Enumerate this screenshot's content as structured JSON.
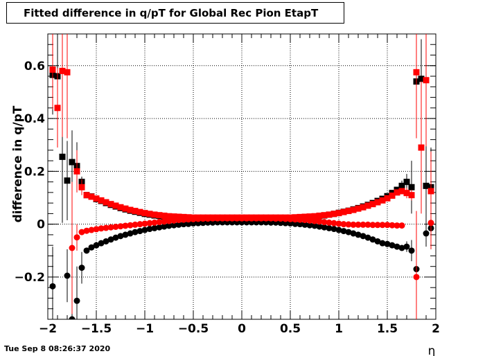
{
  "title": "Fitted difference in q/pT for Global Rec Pion EtapT",
  "datestamp": "Tue Sep  8 08:26:37 2020",
  "chart_data": {
    "type": "scatter",
    "title": "Fitted difference in q/pT for Global Rec Pion EtapT",
    "xlabel": "η",
    "ylabel": "difference in q/pT",
    "xlim": [
      -2,
      2
    ],
    "ylim": [
      -0.36,
      0.72
    ],
    "x_ticks": [
      -2,
      -1.5,
      -1,
      -0.5,
      0,
      0.5,
      1,
      1.5,
      2
    ],
    "x_tick_labels": [
      "−2",
      "−1.5",
      "−1",
      "−0.5",
      "0",
      "0.5",
      "1",
      "1.5",
      "2"
    ],
    "y_ticks": [
      -0.2,
      0,
      0.2,
      0.4,
      0.6
    ],
    "y_tick_labels": [
      "−0.2",
      "0",
      "0.2",
      "0.4",
      "0.6"
    ],
    "grid": true,
    "legend": "none",
    "series": [
      {
        "marker": "square",
        "color": "#000000",
        "x": [
          -1.95,
          -1.9,
          -1.85,
          -1.8,
          -1.75,
          -1.7,
          -1.65,
          -1.6,
          -1.55,
          -1.5,
          -1.45,
          -1.4,
          -1.35,
          -1.3,
          -1.25,
          -1.2,
          -1.15,
          -1.1,
          -1.05,
          -1.0,
          -0.95,
          -0.9,
          -0.85,
          -0.8,
          -0.75,
          -0.7,
          -0.65,
          -0.6,
          -0.55,
          -0.5,
          -0.45,
          -0.4,
          -0.35,
          -0.3,
          -0.25,
          -0.2,
          -0.15,
          -0.1,
          -0.05,
          0.0,
          0.05,
          0.1,
          0.15,
          0.2,
          0.25,
          0.3,
          0.35,
          0.4,
          0.45,
          0.5,
          0.55,
          0.6,
          0.65,
          0.7,
          0.75,
          0.8,
          0.85,
          0.9,
          0.95,
          1.0,
          1.05,
          1.1,
          1.15,
          1.2,
          1.25,
          1.3,
          1.35,
          1.4,
          1.45,
          1.5,
          1.55,
          1.6,
          1.65,
          1.7,
          1.75,
          1.8,
          1.85,
          1.9,
          1.95
        ],
        "y": [
          0.565,
          0.56,
          0.255,
          0.165,
          0.235,
          0.22,
          0.16,
          0.11,
          0.105,
          0.095,
          0.088,
          0.08,
          0.073,
          0.067,
          0.061,
          0.056,
          0.051,
          0.047,
          0.043,
          0.039,
          0.036,
          0.033,
          0.031,
          0.029,
          0.027,
          0.025,
          0.024,
          0.023,
          0.022,
          0.021,
          0.021,
          0.02,
          0.02,
          0.02,
          0.02,
          0.02,
          0.02,
          0.02,
          0.02,
          0.02,
          0.02,
          0.02,
          0.02,
          0.02,
          0.02,
          0.02,
          0.02,
          0.021,
          0.021,
          0.022,
          0.023,
          0.024,
          0.025,
          0.027,
          0.029,
          0.031,
          0.033,
          0.036,
          0.039,
          0.043,
          0.047,
          0.051,
          0.056,
          0.061,
          0.067,
          0.073,
          0.08,
          0.088,
          0.096,
          0.106,
          0.118,
          0.13,
          0.145,
          0.16,
          0.14,
          0.54,
          0.55,
          0.145,
          0.14
        ],
        "yerr": [
          0.15,
          0.15,
          0.25,
          0.15,
          0.12,
          0.09,
          0.02,
          0.006,
          0.005,
          0.005,
          0.004,
          0.004,
          0.003,
          0.003,
          0.003,
          0.003,
          0.003,
          0.003,
          0.003,
          0.003,
          0.003,
          0.003,
          0.003,
          0.003,
          0.003,
          0.003,
          0.003,
          0.003,
          0.003,
          0.003,
          0.003,
          0.003,
          0.003,
          0.003,
          0.003,
          0.003,
          0.003,
          0.003,
          0.003,
          0.003,
          0.003,
          0.003,
          0.003,
          0.003,
          0.003,
          0.003,
          0.003,
          0.003,
          0.003,
          0.003,
          0.003,
          0.003,
          0.003,
          0.003,
          0.003,
          0.003,
          0.003,
          0.003,
          0.003,
          0.003,
          0.003,
          0.003,
          0.003,
          0.003,
          0.003,
          0.003,
          0.003,
          0.004,
          0.004,
          0.005,
          0.005,
          0.01,
          0.02,
          0.03,
          0.1,
          0.15,
          0.15,
          0.15,
          0.15
        ]
      },
      {
        "marker": "circle",
        "color": "#000000",
        "x": [
          -1.95,
          -1.8,
          -1.75,
          -1.7,
          -1.65,
          -1.6,
          -1.55,
          -1.5,
          -1.45,
          -1.4,
          -1.35,
          -1.3,
          -1.25,
          -1.2,
          -1.15,
          -1.1,
          -1.05,
          -1.0,
          -0.95,
          -0.9,
          -0.85,
          -0.8,
          -0.75,
          -0.7,
          -0.65,
          -0.6,
          -0.55,
          -0.5,
          -0.45,
          -0.4,
          -0.35,
          -0.3,
          -0.25,
          -0.2,
          -0.15,
          -0.1,
          -0.05,
          0.0,
          0.05,
          0.1,
          0.15,
          0.2,
          0.25,
          0.3,
          0.35,
          0.4,
          0.45,
          0.5,
          0.55,
          0.6,
          0.65,
          0.7,
          0.75,
          0.8,
          0.85,
          0.9,
          0.95,
          1.0,
          1.05,
          1.1,
          1.15,
          1.2,
          1.25,
          1.3,
          1.35,
          1.4,
          1.45,
          1.5,
          1.55,
          1.6,
          1.65,
          1.7,
          1.75,
          1.8,
          1.9,
          1.95
        ],
        "y": [
          -0.235,
          -0.195,
          -0.36,
          -0.29,
          -0.165,
          -0.1,
          -0.088,
          -0.08,
          -0.072,
          -0.065,
          -0.058,
          -0.051,
          -0.045,
          -0.04,
          -0.035,
          -0.03,
          -0.026,
          -0.022,
          -0.018,
          -0.015,
          -0.012,
          -0.009,
          -0.006,
          -0.004,
          -0.002,
          0.0,
          0.001,
          0.003,
          0.004,
          0.005,
          0.006,
          0.006,
          0.007,
          0.007,
          0.007,
          0.007,
          0.007,
          0.007,
          0.007,
          0.007,
          0.007,
          0.007,
          0.007,
          0.006,
          0.006,
          0.005,
          0.004,
          0.003,
          0.001,
          0.0,
          -0.002,
          -0.004,
          -0.006,
          -0.009,
          -0.012,
          -0.015,
          -0.018,
          -0.022,
          -0.026,
          -0.03,
          -0.035,
          -0.04,
          -0.045,
          -0.051,
          -0.058,
          -0.065,
          -0.072,
          -0.075,
          -0.08,
          -0.085,
          -0.09,
          -0.085,
          -0.1,
          -0.17,
          -0.035,
          -0.015
        ],
        "yerr": [
          0.15,
          0.1,
          0.1,
          0.13,
          0.06,
          0.01,
          0.005,
          0.005,
          0.004,
          0.004,
          0.003,
          0.003,
          0.003,
          0.003,
          0.003,
          0.003,
          0.003,
          0.003,
          0.003,
          0.003,
          0.003,
          0.003,
          0.003,
          0.003,
          0.003,
          0.003,
          0.003,
          0.003,
          0.003,
          0.003,
          0.003,
          0.003,
          0.003,
          0.003,
          0.003,
          0.003,
          0.003,
          0.003,
          0.003,
          0.003,
          0.003,
          0.003,
          0.003,
          0.003,
          0.003,
          0.003,
          0.003,
          0.003,
          0.003,
          0.003,
          0.003,
          0.003,
          0.003,
          0.003,
          0.003,
          0.003,
          0.003,
          0.003,
          0.003,
          0.003,
          0.003,
          0.003,
          0.003,
          0.003,
          0.003,
          0.003,
          0.004,
          0.004,
          0.005,
          0.005,
          0.01,
          0.02,
          0.04,
          0.11,
          0.05,
          0.08
        ]
      },
      {
        "marker": "square",
        "color": "#ff0000",
        "x": [
          -1.95,
          -1.9,
          -1.85,
          -1.8,
          -1.7,
          -1.65,
          -1.6,
          -1.55,
          -1.5,
          -1.45,
          -1.4,
          -1.35,
          -1.3,
          -1.25,
          -1.2,
          -1.15,
          -1.1,
          -1.05,
          -1.0,
          -0.95,
          -0.9,
          -0.85,
          -0.8,
          -0.75,
          -0.7,
          -0.65,
          -0.6,
          -0.55,
          -0.5,
          -0.45,
          -0.4,
          -0.35,
          -0.3,
          -0.25,
          -0.2,
          -0.15,
          -0.1,
          -0.05,
          0.0,
          0.05,
          0.1,
          0.15,
          0.2,
          0.25,
          0.3,
          0.35,
          0.4,
          0.45,
          0.5,
          0.55,
          0.6,
          0.65,
          0.7,
          0.75,
          0.8,
          0.85,
          0.9,
          0.95,
          1.0,
          1.05,
          1.1,
          1.15,
          1.2,
          1.25,
          1.3,
          1.35,
          1.4,
          1.45,
          1.5,
          1.55,
          1.6,
          1.65,
          1.7,
          1.75,
          1.8,
          1.85,
          1.9,
          1.95
        ],
        "y": [
          0.585,
          0.44,
          0.58,
          0.575,
          0.2,
          0.14,
          0.11,
          0.104,
          0.097,
          0.09,
          0.083,
          0.076,
          0.07,
          0.064,
          0.059,
          0.054,
          0.05,
          0.046,
          0.042,
          0.039,
          0.036,
          0.034,
          0.032,
          0.03,
          0.029,
          0.028,
          0.027,
          0.026,
          0.025,
          0.025,
          0.025,
          0.025,
          0.025,
          0.025,
          0.025,
          0.025,
          0.025,
          0.025,
          0.025,
          0.025,
          0.025,
          0.025,
          0.025,
          0.025,
          0.025,
          0.025,
          0.025,
          0.025,
          0.025,
          0.026,
          0.027,
          0.028,
          0.029,
          0.03,
          0.032,
          0.034,
          0.036,
          0.039,
          0.042,
          0.046,
          0.05,
          0.054,
          0.059,
          0.064,
          0.07,
          0.076,
          0.083,
          0.09,
          0.098,
          0.108,
          0.12,
          0.125,
          0.118,
          0.11,
          0.575,
          0.29,
          0.545,
          0.125
        ],
        "yerr": [
          0.15,
          0.15,
          0.25,
          0.25,
          0.08,
          0.03,
          0.008,
          0.005,
          0.005,
          0.004,
          0.004,
          0.003,
          0.003,
          0.003,
          0.003,
          0.003,
          0.003,
          0.003,
          0.003,
          0.003,
          0.003,
          0.003,
          0.003,
          0.003,
          0.003,
          0.003,
          0.003,
          0.003,
          0.003,
          0.003,
          0.003,
          0.003,
          0.003,
          0.003,
          0.003,
          0.003,
          0.003,
          0.003,
          0.003,
          0.003,
          0.003,
          0.003,
          0.003,
          0.003,
          0.003,
          0.003,
          0.003,
          0.003,
          0.003,
          0.003,
          0.003,
          0.003,
          0.003,
          0.003,
          0.003,
          0.003,
          0.003,
          0.003,
          0.003,
          0.003,
          0.003,
          0.003,
          0.003,
          0.003,
          0.003,
          0.003,
          0.004,
          0.004,
          0.005,
          0.005,
          0.008,
          0.01,
          0.02,
          0.02,
          0.25,
          0.25,
          0.25,
          0.15
        ]
      },
      {
        "marker": "circle",
        "color": "#ff0000",
        "x": [
          -1.75,
          -1.7,
          -1.65,
          -1.6,
          -1.55,
          -1.5,
          -1.45,
          -1.4,
          -1.35,
          -1.3,
          -1.25,
          -1.2,
          -1.15,
          -1.1,
          -1.05,
          -1.0,
          -0.95,
          -0.9,
          -0.85,
          -0.8,
          -0.75,
          -0.7,
          -0.65,
          -0.6,
          -0.55,
          -0.5,
          -0.45,
          -0.4,
          -0.35,
          -0.3,
          -0.25,
          -0.2,
          -0.15,
          -0.1,
          -0.05,
          0.0,
          0.05,
          0.1,
          0.15,
          0.2,
          0.25,
          0.3,
          0.35,
          0.4,
          0.45,
          0.5,
          0.55,
          0.6,
          0.65,
          0.7,
          0.75,
          0.8,
          0.85,
          0.9,
          0.95,
          1.0,
          1.05,
          1.1,
          1.15,
          1.2,
          1.25,
          1.3,
          1.35,
          1.4,
          1.45,
          1.5,
          1.55,
          1.6,
          1.65,
          1.8,
          1.95
        ],
        "y": [
          -0.09,
          -0.05,
          -0.03,
          -0.025,
          -0.022,
          -0.019,
          -0.016,
          -0.014,
          -0.012,
          -0.01,
          -0.008,
          -0.006,
          -0.004,
          -0.002,
          0.0,
          0.002,
          0.004,
          0.006,
          0.008,
          0.01,
          0.012,
          0.014,
          0.016,
          0.017,
          0.018,
          0.019,
          0.02,
          0.021,
          0.021,
          0.022,
          0.022,
          0.022,
          0.022,
          0.022,
          0.022,
          0.022,
          0.022,
          0.022,
          0.022,
          0.022,
          0.022,
          0.022,
          0.021,
          0.021,
          0.02,
          0.019,
          0.018,
          0.017,
          0.016,
          0.014,
          0.012,
          0.01,
          0.008,
          0.006,
          0.004,
          0.002,
          0.0,
          -0.001,
          -0.002,
          -0.002,
          -0.002,
          -0.002,
          -0.003,
          -0.003,
          -0.003,
          -0.003,
          -0.004,
          -0.005,
          -0.005,
          -0.2,
          0.005
        ],
        "yerr": [
          0.25,
          0.05,
          0.01,
          0.005,
          0.004,
          0.004,
          0.003,
          0.003,
          0.003,
          0.003,
          0.003,
          0.003,
          0.003,
          0.003,
          0.003,
          0.003,
          0.003,
          0.003,
          0.003,
          0.003,
          0.003,
          0.003,
          0.003,
          0.003,
          0.003,
          0.003,
          0.003,
          0.003,
          0.003,
          0.003,
          0.003,
          0.003,
          0.003,
          0.003,
          0.003,
          0.003,
          0.003,
          0.003,
          0.003,
          0.003,
          0.003,
          0.003,
          0.003,
          0.003,
          0.003,
          0.003,
          0.003,
          0.003,
          0.003,
          0.003,
          0.003,
          0.003,
          0.003,
          0.003,
          0.003,
          0.003,
          0.003,
          0.003,
          0.003,
          0.003,
          0.003,
          0.003,
          0.003,
          0.003,
          0.003,
          0.003,
          0.004,
          0.005,
          0.006,
          0.25,
          0.1
        ]
      }
    ]
  }
}
